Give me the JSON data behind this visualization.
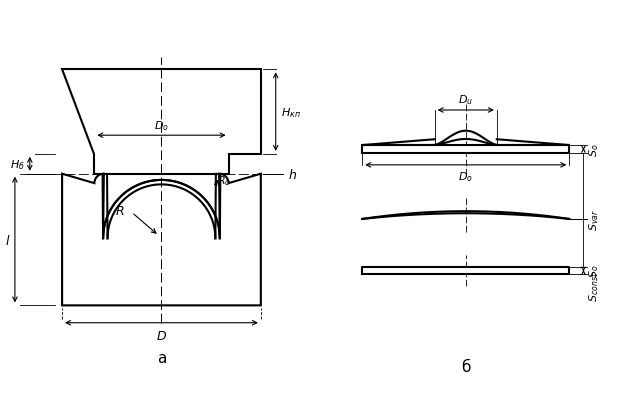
{
  "fig_width": 6.21,
  "fig_height": 4.14,
  "dpi": 100,
  "bg_color": "#ffffff",
  "line_color": "#000000",
  "label_a": "a",
  "label_b": "б"
}
